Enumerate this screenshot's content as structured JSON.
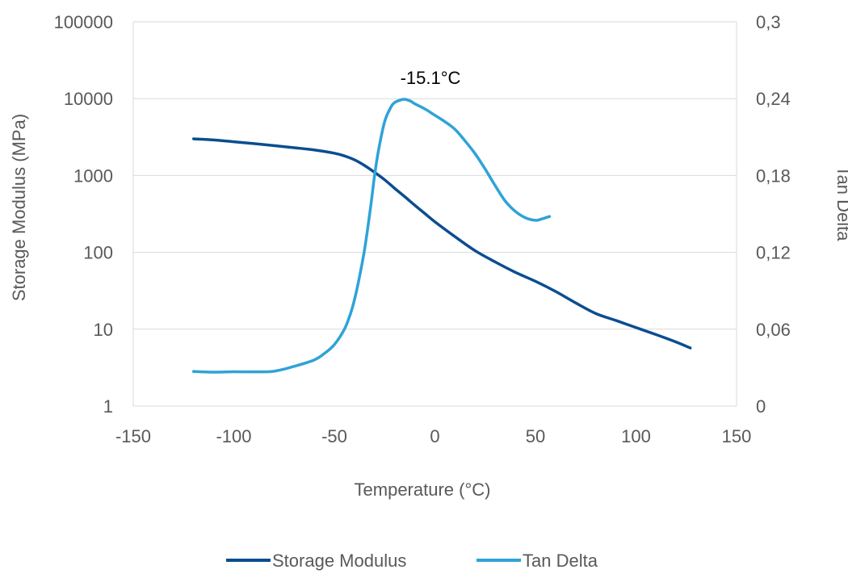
{
  "chart_data": {
    "type": "line",
    "xlabel": "Temperature (°C)",
    "ylabel": "Storage Modulus (MPa)",
    "y2label": "Tan Delta",
    "xlim": [
      -150,
      150
    ],
    "ylim": [
      1,
      100000
    ],
    "yscale": "log",
    "y2lim": [
      0,
      0.3
    ],
    "grid": true,
    "legend_position": "bottom",
    "x_ticks": [
      "-150",
      "-100",
      "-50",
      "0",
      "50",
      "100",
      "150"
    ],
    "x_tick_values": [
      -150,
      -100,
      -50,
      0,
      50,
      100,
      150
    ],
    "y_ticks": [
      "1",
      "10",
      "100",
      "1000",
      "10000",
      "100000"
    ],
    "y_tick_values": [
      1,
      10,
      100,
      1000,
      10000,
      100000
    ],
    "y2_ticks": [
      "0",
      "0,06",
      "0,12",
      "0,18",
      "0,24",
      "0,3"
    ],
    "y2_tick_values": [
      0,
      0.06,
      0.12,
      0.18,
      0.24,
      0.3
    ],
    "annotation": {
      "text": "-15.1°C",
      "x": -15.1,
      "y2": 0.24
    },
    "series": [
      {
        "name": "Storage Modulus",
        "axis": "left",
        "color": "#0B4D91",
        "x": [
          -120,
          -110,
          -100,
          -90,
          -80,
          -70,
          -60,
          -50,
          -45,
          -40,
          -35,
          -30,
          -25,
          -20,
          -15,
          -10,
          -5,
          0,
          10,
          20,
          30,
          40,
          50,
          60,
          70,
          80,
          90,
          100,
          110,
          120,
          127
        ],
        "y": [
          3000,
          2900,
          2750,
          2600,
          2450,
          2300,
          2150,
          1950,
          1800,
          1600,
          1350,
          1100,
          880,
          680,
          530,
          410,
          320,
          250,
          160,
          105,
          75,
          55,
          42,
          31,
          22,
          16,
          13,
          10.5,
          8.5,
          6.8,
          5.7
        ]
      },
      {
        "name": "Tan Delta",
        "axis": "right",
        "color": "#2EA3D8",
        "x": [
          -120,
          -110,
          -100,
          -90,
          -80,
          -70,
          -60,
          -55,
          -50,
          -45,
          -42,
          -40,
          -38,
          -35,
          -32,
          -30,
          -28,
          -25,
          -22,
          -20,
          -17,
          -15,
          -12,
          -10,
          -5,
          0,
          5,
          10,
          15,
          20,
          25,
          30,
          35,
          40,
          45,
          50,
          53,
          57
        ],
        "y": [
          0.027,
          0.0265,
          0.0268,
          0.0267,
          0.0272,
          0.031,
          0.036,
          0.041,
          0.048,
          0.06,
          0.072,
          0.083,
          0.097,
          0.122,
          0.155,
          0.18,
          0.2,
          0.222,
          0.233,
          0.237,
          0.239,
          0.2395,
          0.238,
          0.236,
          0.232,
          0.227,
          0.222,
          0.216,
          0.207,
          0.197,
          0.185,
          0.172,
          0.16,
          0.152,
          0.147,
          0.145,
          0.146,
          0.148
        ]
      }
    ]
  }
}
